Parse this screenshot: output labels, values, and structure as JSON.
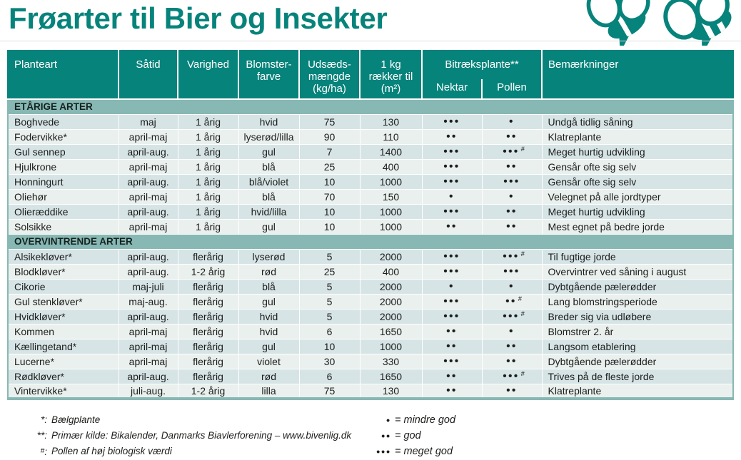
{
  "title": "Frøarter til Bier og Insekter",
  "colors": {
    "teal": "#06837B",
    "band": "#87B8B3",
    "row_odd": "#D6E4E6",
    "row_even": "#E9F0EE"
  },
  "table": {
    "header": {
      "planteart": "Planteart",
      "satid": "Såtid",
      "varighed": "Varighed",
      "farve": "Blomster-\nfarve",
      "udsaed": "Udsæds-\nmængde\n(kg/ha)",
      "raekker": "1 kg\nrækker til\n(m²)",
      "bitraek": "Bitræksplante**",
      "nektar": "Nektar",
      "pollen": "Pollen",
      "bem": "Bemærkninger"
    },
    "sections": [
      {
        "title": "ETÅRIGE ARTER",
        "rows": [
          {
            "planteart": "Boghvede",
            "satid": "maj",
            "varighed": "1 årig",
            "farve": "hvid",
            "udsaed": "75",
            "raekker": "130",
            "nektar": 3,
            "pollen": 1,
            "pollen_hash": false,
            "bem": "Undgå tidlig såning"
          },
          {
            "planteart": "Fodervikke*",
            "satid": "april-maj",
            "varighed": "1 årig",
            "farve": "lyserød/lilla",
            "udsaed": "90",
            "raekker": "110",
            "nektar": 2,
            "pollen": 2,
            "pollen_hash": false,
            "bem": "Klatreplante"
          },
          {
            "planteart": "Gul sennep",
            "satid": "april-aug.",
            "varighed": "1 årig",
            "farve": "gul",
            "udsaed": "7",
            "raekker": "1400",
            "nektar": 3,
            "pollen": 3,
            "pollen_hash": true,
            "bem": "Meget hurtig udvikling"
          },
          {
            "planteart": "Hjulkrone",
            "satid": "april-maj",
            "varighed": "1 årig",
            "farve": "blå",
            "udsaed": "25",
            "raekker": "400",
            "nektar": 3,
            "pollen": 2,
            "pollen_hash": false,
            "bem": "Gensår ofte sig selv"
          },
          {
            "planteart": "Honningurt",
            "satid": "april-aug.",
            "varighed": "1 årig",
            "farve": "blå/violet",
            "udsaed": "10",
            "raekker": "1000",
            "nektar": 3,
            "pollen": 3,
            "pollen_hash": false,
            "bem": "Gensår ofte sig selv"
          },
          {
            "planteart": "Oliehør",
            "satid": "april-maj",
            "varighed": "1 årig",
            "farve": "blå",
            "udsaed": "70",
            "raekker": "150",
            "nektar": 1,
            "pollen": 1,
            "pollen_hash": false,
            "bem": "Velegnet på alle jordtyper"
          },
          {
            "planteart": "Olieræddike",
            "satid": "april-aug.",
            "varighed": "1 årig",
            "farve": "hvid/lilla",
            "udsaed": "10",
            "raekker": "1000",
            "nektar": 3,
            "pollen": 2,
            "pollen_hash": false,
            "bem": "Meget hurtig udvikling"
          },
          {
            "planteart": "Solsikke",
            "satid": "april-maj",
            "varighed": "1 årig",
            "farve": "gul",
            "udsaed": "10",
            "raekker": "1000",
            "nektar": 2,
            "pollen": 2,
            "pollen_hash": false,
            "bem": "Mest egnet på bedre jorde"
          }
        ]
      },
      {
        "title": "OVERVINTRENDE ARTER",
        "rows": [
          {
            "planteart": "Alsikekløver*",
            "satid": "april-aug.",
            "varighed": "flerårig",
            "farve": "lyserød",
            "udsaed": "5",
            "raekker": "2000",
            "nektar": 3,
            "pollen": 3,
            "pollen_hash": true,
            "bem": "Til fugtige jorde"
          },
          {
            "planteart": "Blodkløver*",
            "satid": "april-aug.",
            "varighed": "1-2 årig",
            "farve": "rød",
            "udsaed": "25",
            "raekker": "400",
            "nektar": 3,
            "pollen": 3,
            "pollen_hash": false,
            "bem": "Overvintrer ved såning i august"
          },
          {
            "planteart": "Cikorie",
            "satid": "maj-juli",
            "varighed": "flerårig",
            "farve": "blå",
            "udsaed": "5",
            "raekker": "2000",
            "nektar": 1,
            "pollen": 1,
            "pollen_hash": false,
            "bem": "Dybtgående pælerødder"
          },
          {
            "planteart": "Gul stenkløver*",
            "satid": "maj-aug.",
            "varighed": "flerårig",
            "farve": "gul",
            "udsaed": "5",
            "raekker": "2000",
            "nektar": 3,
            "pollen": 2,
            "pollen_hash": true,
            "bem": "Lang blomstringsperiode"
          },
          {
            "planteart": "Hvidkløver*",
            "satid": "april-aug.",
            "varighed": "flerårig",
            "farve": "hvid",
            "udsaed": "5",
            "raekker": "2000",
            "nektar": 3,
            "pollen": 3,
            "pollen_hash": true,
            "bem": "Breder sig via udløbere"
          },
          {
            "planteart": "Kommen",
            "satid": "april-maj",
            "varighed": "flerårig",
            "farve": "hvid",
            "udsaed": "6",
            "raekker": "1650",
            "nektar": 2,
            "pollen": 1,
            "pollen_hash": false,
            "bem": "Blomstrer 2. år"
          },
          {
            "planteart": "Kællingetand*",
            "satid": "april-maj",
            "varighed": "flerårig",
            "farve": "gul",
            "udsaed": "10",
            "raekker": "1000",
            "nektar": 2,
            "pollen": 2,
            "pollen_hash": false,
            "bem": "Langsom etablering"
          },
          {
            "planteart": "Lucerne*",
            "satid": "april-maj",
            "varighed": "flerårig",
            "farve": "violet",
            "udsaed": "30",
            "raekker": "330",
            "nektar": 3,
            "pollen": 2,
            "pollen_hash": false,
            "bem": "Dybtgående pælerødder"
          },
          {
            "planteart": "Rødkløver*",
            "satid": "april-aug.",
            "varighed": "flerårig",
            "farve": "rød",
            "udsaed": "6",
            "raekker": "1650",
            "nektar": 2,
            "pollen": 3,
            "pollen_hash": true,
            "bem": "Trives på de fleste jorde"
          },
          {
            "planteart": "Vintervikke*",
            "satid": "juli-aug.",
            "varighed": "1-2 årig",
            "farve": "lilla",
            "udsaed": "75",
            "raekker": "130",
            "nektar": 2,
            "pollen": 2,
            "pollen_hash": false,
            "bem": "Klatreplante"
          }
        ]
      }
    ]
  },
  "footnotes": [
    {
      "marker": "*:",
      "text": "Bælgplante"
    },
    {
      "marker": "**:",
      "text": "Primær kilde: Bikalender, Danmarks Biavlerforening – www.bivenlig.dk"
    },
    {
      "marker": "#:",
      "text": "Pollen af høj biologisk værdi"
    }
  ],
  "legend": [
    {
      "dots": 1,
      "label": "= mindre god"
    },
    {
      "dots": 2,
      "label": "= god"
    },
    {
      "dots": 3,
      "label": "= meget god"
    }
  ]
}
